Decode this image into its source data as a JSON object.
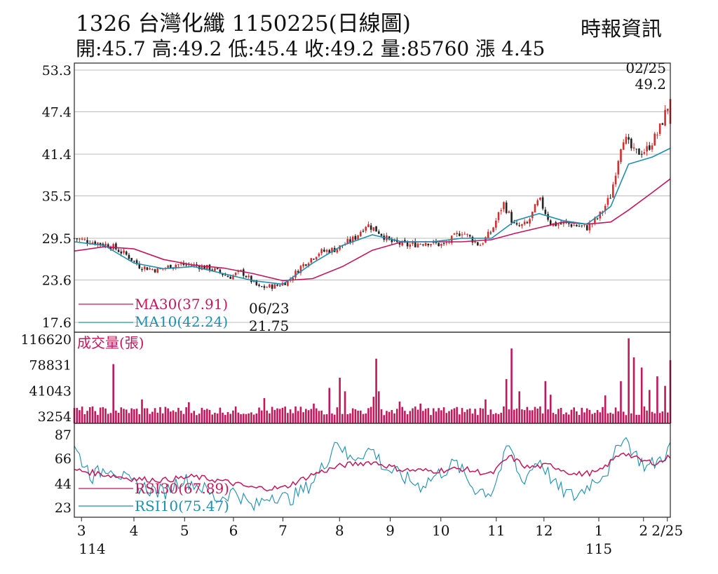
{
  "header": {
    "title": "1326  台灣化纖 1150225(日線圖)",
    "source": "時報資訊",
    "ohlc": "開:45.7 高:49.2 低:45.4 收:49.2 量:85760 漲 4.45"
  },
  "colors": {
    "up": "#d32f2f",
    "down": "#222222",
    "ma30": "#c2185b",
    "ma10": "#1d8fb0",
    "volume": "#c2185b",
    "rsi30": "#c2185b",
    "rsi10": "#1d8fb0",
    "grid": "#bbbbbb"
  },
  "chart_data": [
    {
      "type": "candlestick",
      "name": "price",
      "y_ticks": [
        "53.3",
        "47.4",
        "41.4",
        "35.5",
        "29.5",
        "23.6",
        "17.6"
      ],
      "ylim": [
        17.6,
        53.3
      ],
      "annotations": {
        "last_date": "02/25",
        "last_close": "49.2",
        "low_date": "06/23",
        "low_value": "21.75"
      },
      "legend": [
        {
          "key": "ma30",
          "label": "MA30(37.91)"
        },
        {
          "key": "ma10",
          "label": "MA10(42.24)"
        }
      ],
      "month_ticks": [
        {
          "label": "3",
          "pos": 0.012
        },
        {
          "label": "4",
          "pos": 0.1
        },
        {
          "label": "5",
          "pos": 0.185
        },
        {
          "label": "6",
          "pos": 0.267
        },
        {
          "label": "7",
          "pos": 0.35
        },
        {
          "label": "8",
          "pos": 0.445
        },
        {
          "label": "9",
          "pos": 0.53
        },
        {
          "label": "10",
          "pos": 0.615
        },
        {
          "label": "11",
          "pos": 0.708
        },
        {
          "label": "12",
          "pos": 0.788
        },
        {
          "label": "1",
          "pos": 0.88
        },
        {
          "label": "2",
          "pos": 0.955
        },
        {
          "label": "2/25",
          "pos": 0.995
        }
      ],
      "year_labels": [
        {
          "label": "114",
          "pos": 0.03
        },
        {
          "label": "115",
          "pos": 0.88
        }
      ],
      "price_path": [
        [
          0.0,
          29.5
        ],
        [
          0.03,
          29.0
        ],
        [
          0.06,
          28.5
        ],
        [
          0.09,
          27.0
        ],
        [
          0.11,
          25.5
        ],
        [
          0.14,
          25.0
        ],
        [
          0.17,
          25.8
        ],
        [
          0.2,
          25.7
        ],
        [
          0.23,
          25.2
        ],
        [
          0.26,
          24.0
        ],
        [
          0.28,
          24.8
        ],
        [
          0.31,
          22.5
        ],
        [
          0.34,
          22.8
        ],
        [
          0.36,
          23.5
        ],
        [
          0.38,
          25.5
        ],
        [
          0.41,
          27.5
        ],
        [
          0.44,
          28.0
        ],
        [
          0.47,
          29.5
        ],
        [
          0.49,
          31.5
        ],
        [
          0.51,
          30.5
        ],
        [
          0.53,
          29.0
        ],
        [
          0.56,
          28.5
        ],
        [
          0.59,
          29.0
        ],
        [
          0.62,
          28.5
        ],
        [
          0.65,
          30.5
        ],
        [
          0.68,
          28.5
        ],
        [
          0.7,
          30.5
        ],
        [
          0.72,
          34.5
        ],
        [
          0.74,
          31.0
        ],
        [
          0.76,
          31.5
        ],
        [
          0.78,
          35.0
        ],
        [
          0.8,
          31.5
        ],
        [
          0.83,
          31.5
        ],
        [
          0.86,
          31.0
        ],
        [
          0.88,
          32.5
        ],
        [
          0.9,
          35.5
        ],
        [
          0.92,
          44.0
        ],
        [
          0.94,
          41.5
        ],
        [
          0.96,
          42.0
        ],
        [
          0.98,
          44.5
        ],
        [
          1.0,
          49.2
        ]
      ],
      "ma10_path": [
        [
          0.0,
          29.0
        ],
        [
          0.05,
          28.5
        ],
        [
          0.1,
          26.0
        ],
        [
          0.15,
          25.2
        ],
        [
          0.2,
          25.5
        ],
        [
          0.25,
          24.5
        ],
        [
          0.3,
          23.5
        ],
        [
          0.35,
          23.0
        ],
        [
          0.4,
          26.0
        ],
        [
          0.45,
          28.5
        ],
        [
          0.5,
          30.0
        ],
        [
          0.55,
          29.0
        ],
        [
          0.6,
          29.0
        ],
        [
          0.65,
          29.5
        ],
        [
          0.7,
          29.5
        ],
        [
          0.74,
          32.0
        ],
        [
          0.78,
          33.0
        ],
        [
          0.82,
          32.0
        ],
        [
          0.86,
          31.5
        ],
        [
          0.9,
          34.0
        ],
        [
          0.93,
          40.0
        ],
        [
          0.97,
          41.0
        ],
        [
          1.0,
          42.24
        ]
      ],
      "ma30_path": [
        [
          0.0,
          27.7
        ],
        [
          0.05,
          28.3
        ],
        [
          0.1,
          28.0
        ],
        [
          0.15,
          26.5
        ],
        [
          0.2,
          25.7
        ],
        [
          0.25,
          25.3
        ],
        [
          0.3,
          24.5
        ],
        [
          0.35,
          23.5
        ],
        [
          0.4,
          23.8
        ],
        [
          0.45,
          25.5
        ],
        [
          0.5,
          27.8
        ],
        [
          0.55,
          29.0
        ],
        [
          0.6,
          29.0
        ],
        [
          0.65,
          29.0
        ],
        [
          0.7,
          29.3
        ],
        [
          0.74,
          30.2
        ],
        [
          0.78,
          31.0
        ],
        [
          0.82,
          31.8
        ],
        [
          0.86,
          31.5
        ],
        [
          0.9,
          31.8
        ],
        [
          0.93,
          33.5
        ],
        [
          0.97,
          36.0
        ],
        [
          1.0,
          37.91
        ]
      ]
    },
    {
      "type": "bar",
      "name": "volume",
      "label": "成交量(張)",
      "y_ticks": [
        "116620",
        "78831",
        "41043",
        "3254"
      ],
      "ylim": [
        3254,
        116620
      ],
      "base_level": 10000,
      "spikes": [
        [
          0.067,
          80000
        ],
        [
          0.115,
          28000
        ],
        [
          0.19,
          24000
        ],
        [
          0.32,
          30000
        ],
        [
          0.4,
          22000
        ],
        [
          0.43,
          45000
        ],
        [
          0.445,
          60000
        ],
        [
          0.455,
          40000
        ],
        [
          0.5,
          32000
        ],
        [
          0.505,
          88000
        ],
        [
          0.51,
          40000
        ],
        [
          0.545,
          25000
        ],
        [
          0.58,
          22000
        ],
        [
          0.69,
          28000
        ],
        [
          0.725,
          58000
        ],
        [
          0.735,
          103000
        ],
        [
          0.745,
          40000
        ],
        [
          0.79,
          55000
        ],
        [
          0.8,
          35000
        ],
        [
          0.89,
          34000
        ],
        [
          0.915,
          55000
        ],
        [
          0.93,
          118000
        ],
        [
          0.94,
          90000
        ],
        [
          0.95,
          75000
        ],
        [
          0.965,
          42000
        ],
        [
          0.98,
          62000
        ],
        [
          0.99,
          48000
        ],
        [
          1.0,
          85760
        ]
      ]
    },
    {
      "type": "line",
      "name": "rsi",
      "y_ticks": [
        "87",
        "66",
        "44",
        "23"
      ],
      "ylim": [
        15,
        90
      ],
      "legend": [
        {
          "key": "rsi30",
          "label": "RSI30(67.89)"
        },
        {
          "key": "rsi10",
          "label": "RSI10(75.47)"
        }
      ],
      "rsi30_path": [
        [
          0.0,
          56
        ],
        [
          0.05,
          52
        ],
        [
          0.1,
          48
        ],
        [
          0.15,
          47
        ],
        [
          0.2,
          50
        ],
        [
          0.25,
          46
        ],
        [
          0.3,
          40
        ],
        [
          0.35,
          40
        ],
        [
          0.4,
          52
        ],
        [
          0.45,
          60
        ],
        [
          0.5,
          63
        ],
        [
          0.55,
          56
        ],
        [
          0.6,
          55
        ],
        [
          0.65,
          57
        ],
        [
          0.7,
          52
        ],
        [
          0.73,
          68
        ],
        [
          0.76,
          58
        ],
        [
          0.8,
          60
        ],
        [
          0.84,
          52
        ],
        [
          0.88,
          54
        ],
        [
          0.92,
          72
        ],
        [
          0.95,
          64
        ],
        [
          0.98,
          62
        ],
        [
          1.0,
          67.89
        ]
      ],
      "rsi10_path": [
        [
          0.0,
          75
        ],
        [
          0.03,
          50
        ],
        [
          0.06,
          60
        ],
        [
          0.09,
          45
        ],
        [
          0.12,
          40
        ],
        [
          0.15,
          36
        ],
        [
          0.18,
          48
        ],
        [
          0.21,
          42
        ],
        [
          0.24,
          30
        ],
        [
          0.27,
          38
        ],
        [
          0.3,
          22
        ],
        [
          0.33,
          35
        ],
        [
          0.36,
          30
        ],
        [
          0.39,
          40
        ],
        [
          0.42,
          60
        ],
        [
          0.44,
          84
        ],
        [
          0.46,
          65
        ],
        [
          0.48,
          70
        ],
        [
          0.5,
          74
        ],
        [
          0.52,
          58
        ],
        [
          0.55,
          50
        ],
        [
          0.58,
          42
        ],
        [
          0.61,
          52
        ],
        [
          0.64,
          62
        ],
        [
          0.67,
          40
        ],
        [
          0.7,
          36
        ],
        [
          0.73,
          78
        ],
        [
          0.75,
          45
        ],
        [
          0.78,
          66
        ],
        [
          0.81,
          40
        ],
        [
          0.84,
          32
        ],
        [
          0.87,
          46
        ],
        [
          0.9,
          58
        ],
        [
          0.92,
          88
        ],
        [
          0.94,
          70
        ],
        [
          0.96,
          58
        ],
        [
          0.98,
          64
        ],
        [
          1.0,
          75.47
        ]
      ]
    }
  ]
}
